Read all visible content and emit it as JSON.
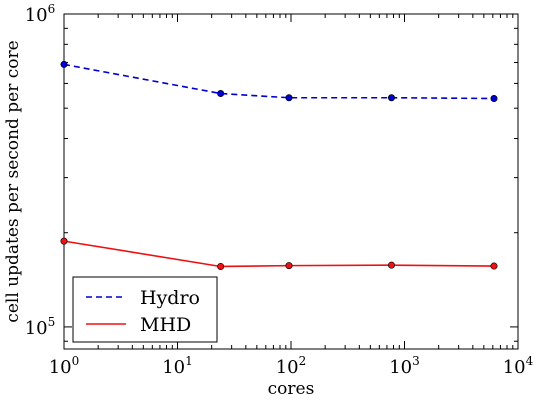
{
  "chart_data": {
    "type": "line",
    "xlabel": "cores",
    "ylabel": "cell updates per second per core",
    "x_scale": "log",
    "y_scale": "log",
    "xlim": [
      1,
      10000
    ],
    "ylim": [
      85000,
      1000000
    ],
    "x_ticks": [
      {
        "value": 1,
        "base": "10",
        "exp": "0"
      },
      {
        "value": 10,
        "base": "10",
        "exp": "1"
      },
      {
        "value": 100,
        "base": "10",
        "exp": "2"
      },
      {
        "value": 1000,
        "base": "10",
        "exp": "3"
      },
      {
        "value": 10000,
        "base": "10",
        "exp": "4"
      }
    ],
    "y_ticks": [
      {
        "value": 100000,
        "base": "10",
        "exp": "5"
      },
      {
        "value": 1000000,
        "base": "10",
        "exp": "6"
      }
    ],
    "series": [
      {
        "name": "Hydro",
        "color": "#0000cc",
        "dash": "dashed",
        "x": [
          1,
          24,
          96,
          768,
          6144
        ],
        "y": [
          690000,
          557000,
          540000,
          540000,
          537000
        ]
      },
      {
        "name": "MHD",
        "color": "#ee1111",
        "dash": "solid",
        "x": [
          1,
          24,
          96,
          768,
          6144
        ],
        "y": [
          188000,
          156000,
          157000,
          157500,
          156500
        ]
      }
    ],
    "legend_position": "bottom-left",
    "grid": false
  }
}
